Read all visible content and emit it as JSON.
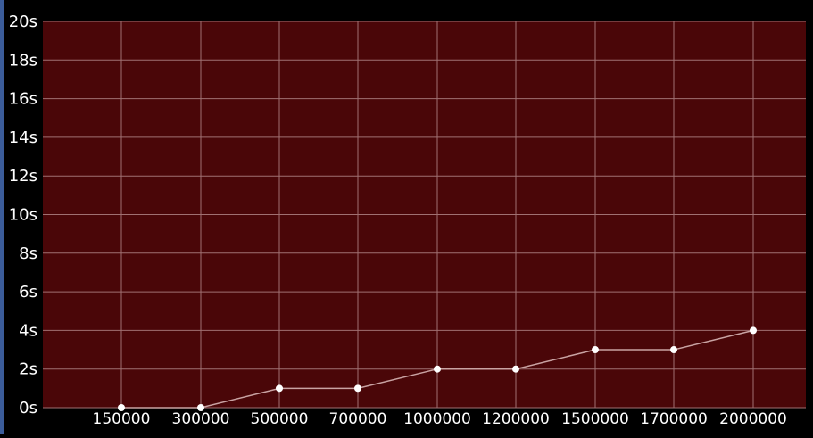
{
  "chart_data": {
    "type": "line",
    "categories": [
      "150000",
      "300000",
      "500000",
      "700000",
      "1000000",
      "1200000",
      "1500000",
      "1700000",
      "2000000"
    ],
    "series": [
      {
        "values": [
          0,
          0,
          1,
          1,
          2,
          2,
          3,
          3,
          4
        ]
      }
    ],
    "y_ticks": [
      "0s",
      "2s",
      "4s",
      "6s",
      "8s",
      "10s",
      "12s",
      "14s",
      "16s",
      "18s",
      "20s"
    ],
    "ylim": [
      0,
      20
    ],
    "grid": true,
    "colors": {
      "plot_background": "#4a0608",
      "grid": "#a07072",
      "line": "#c9a3a3",
      "marker": "#ffffff",
      "page_background": "#000000",
      "accent": "#3b5c9a"
    }
  }
}
